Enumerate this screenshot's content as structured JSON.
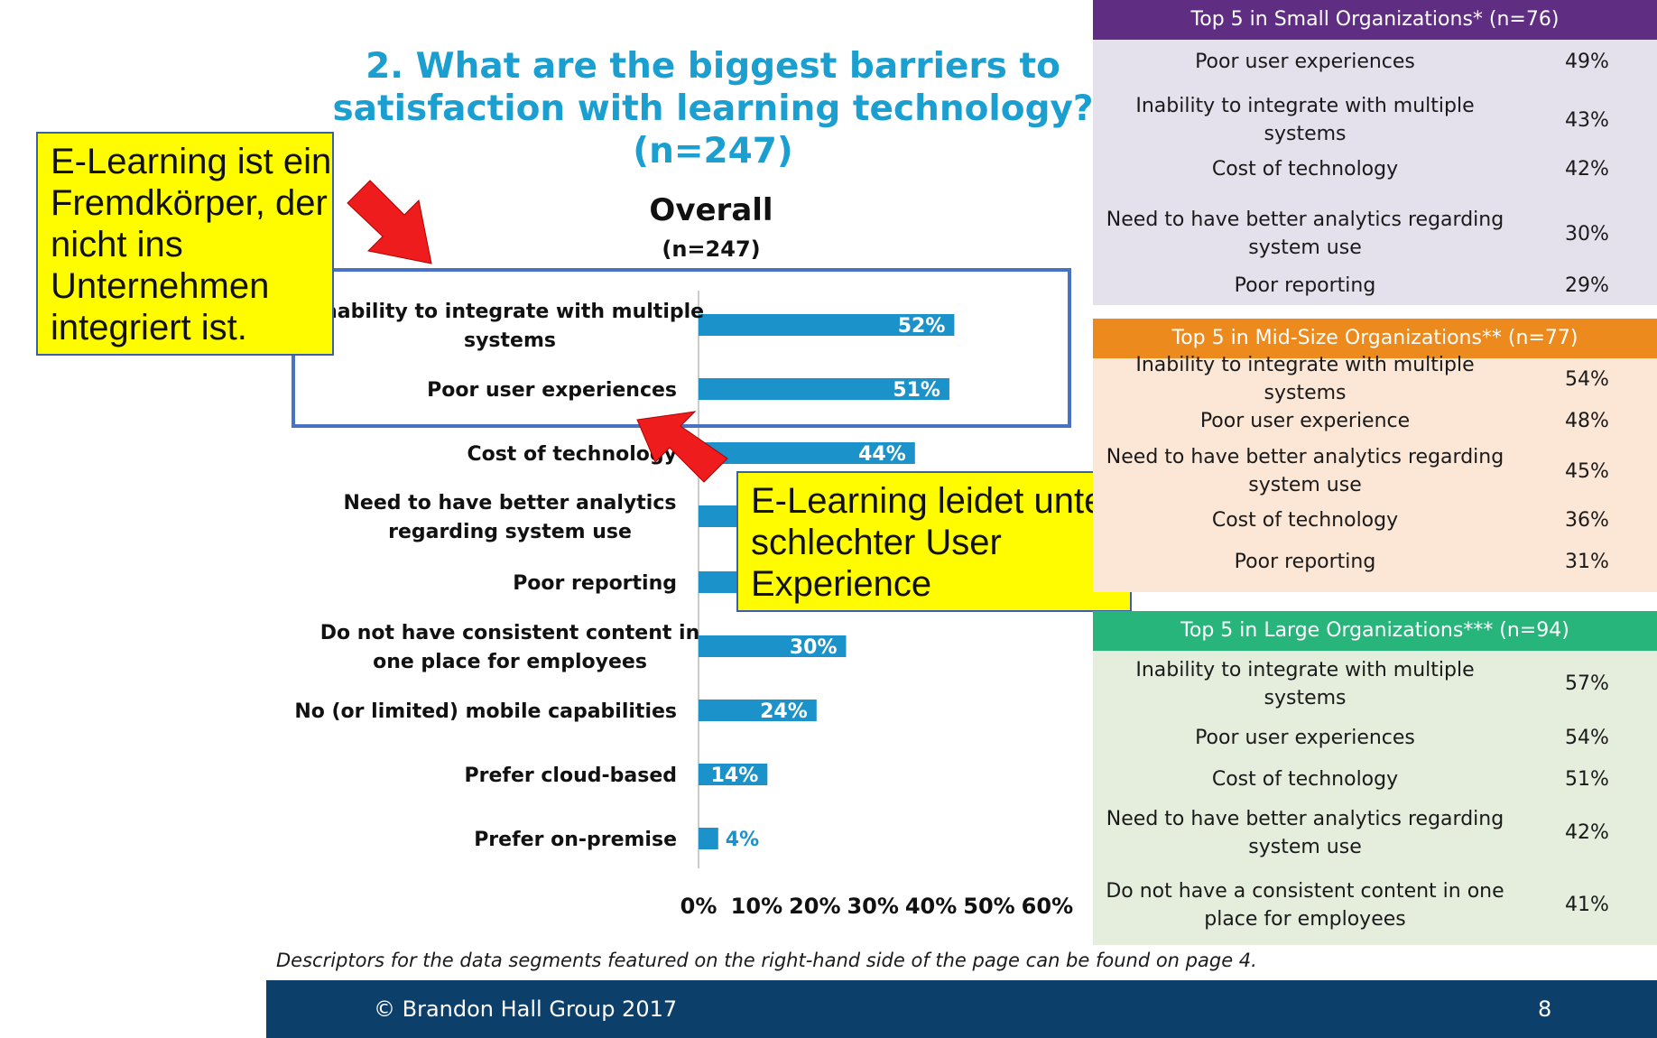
{
  "title": "2. What are the biggest barriers to satisfaction with learning technology? (n=247)",
  "chart_data": {
    "type": "bar",
    "orientation": "horizontal",
    "title": "Overall",
    "subtitle": "(n=247)",
    "categories": [
      "Inability to integrate with multiple systems",
      "Poor user experiences",
      "Cost of technology",
      "Need to have better analytics regarding system use",
      "Poor reporting",
      "Do not have consistent content in one place for employees",
      "No (or limited) mobile capabilities",
      "Prefer cloud-based",
      "Prefer on-premise"
    ],
    "values": [
      52,
      51,
      44,
      33,
      29,
      30,
      24,
      14,
      4
    ],
    "data_labels": [
      "52%",
      "51%",
      "44%",
      "",
      "",
      "30%",
      "24%",
      "14%",
      "4%"
    ],
    "x_ticks": [
      "0%",
      "10%",
      "20%",
      "30%",
      "40%",
      "50%",
      "60%"
    ],
    "xlim": [
      0,
      60
    ],
    "bar_color": "#1b92c9",
    "grid": false
  },
  "callouts": {
    "one": "E-Learning ist ein Fremdkörper, der nicht ins Unternehmen integriert ist.",
    "two": "E-Learning leidet unter schlechter User Experience"
  },
  "tables": {
    "small": {
      "header": "Top 5 in Small Organizations* (n=76)",
      "header_color": "#5f2d82",
      "body_color": "#e4e0ec",
      "rows": [
        {
          "label": "Poor user experiences",
          "value": "49%"
        },
        {
          "label": "Inability to integrate with multiple systems",
          "value": "43%"
        },
        {
          "label": "Cost of technology",
          "value": "42%"
        },
        {
          "label": "Need to have better analytics regarding system use",
          "value": "30%"
        },
        {
          "label": "Poor reporting",
          "value": "29%"
        }
      ]
    },
    "mid": {
      "header": "Top 5 in Mid-Size Organizations** (n=77)",
      "header_color": "#ec8a1e",
      "body_color": "#fce6d6",
      "rows": [
        {
          "label": "Inability to integrate with multiple systems",
          "value": "54%"
        },
        {
          "label": "Poor user experience",
          "value": "48%"
        },
        {
          "label": "Need to have better analytics regarding system use",
          "value": "45%"
        },
        {
          "label": "Cost of technology",
          "value": "36%"
        },
        {
          "label": "Poor reporting",
          "value": "31%"
        }
      ]
    },
    "large": {
      "header": "Top 5 in Large Organizations*** (n=94)",
      "header_color": "#27b57b",
      "body_color": "#e5eddc",
      "rows": [
        {
          "label": "Inability to integrate with multiple systems",
          "value": "57%"
        },
        {
          "label": "Poor user experiences",
          "value": "54%"
        },
        {
          "label": "Cost of technology",
          "value": "51%"
        },
        {
          "label": "Need to have better analytics regarding system use",
          "value": "42%"
        },
        {
          "label": "Do not have a consistent content in one place for employees",
          "value": "41%"
        }
      ]
    }
  },
  "note": "Descriptors for the data segments featured on the right-hand side of the page can be found on page 4.",
  "footer": {
    "copyright": "© Brandon Hall Group 2017",
    "page": "8"
  },
  "colors": {
    "title": "#1b9fd0",
    "highlight_box": "#4a72c4",
    "arrow": "#ee1c1c",
    "callout_fill": "#fffc00",
    "footer": "#0d3f6b"
  }
}
